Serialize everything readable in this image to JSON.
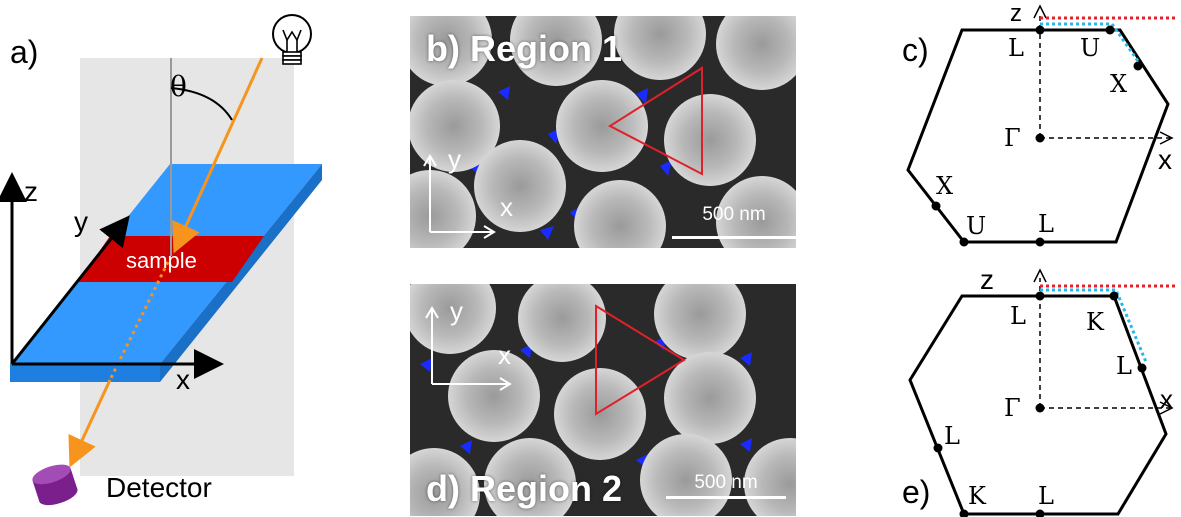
{
  "panel_a": {
    "label": "a)",
    "theta": "θ",
    "axis_z": "z",
    "axis_y": "y",
    "axis_x": "x",
    "sample": "sample",
    "detector": "Detector",
    "colors": {
      "substrate": "#3399ff",
      "sample": "#cc0000",
      "beam": "#f7941d",
      "plane": "#e6e6e6",
      "detector": "#7b1f8c"
    }
  },
  "panel_b": {
    "label": "b) Region 1",
    "axis_y": "y",
    "axis_x": "x",
    "scale": "500 nm"
  },
  "panel_d": {
    "label": "d) Region 2",
    "axis_y": "y",
    "axis_x": "x",
    "scale": "500 nm"
  },
  "panel_c": {
    "label": "c)",
    "axis_z": "z",
    "axis_x": "x",
    "points": {
      "top_L": "L",
      "top_U": "U",
      "right_X": "X",
      "center": "Γ",
      "left_X": "X",
      "bottom_U": "U",
      "bottom_L": "L"
    }
  },
  "panel_e": {
    "label": "e)",
    "axis_z": "z",
    "axis_x": "x",
    "points": {
      "top_L": "L",
      "top_K": "K",
      "right_L": "L",
      "center": "Γ",
      "left_L": "L",
      "bottom_K": "K",
      "bottom_L": "L"
    }
  },
  "colors": {
    "red_dotted": "#e8202a",
    "cyan_dotted": "#29b6e8",
    "triangle": "#e0202a"
  }
}
